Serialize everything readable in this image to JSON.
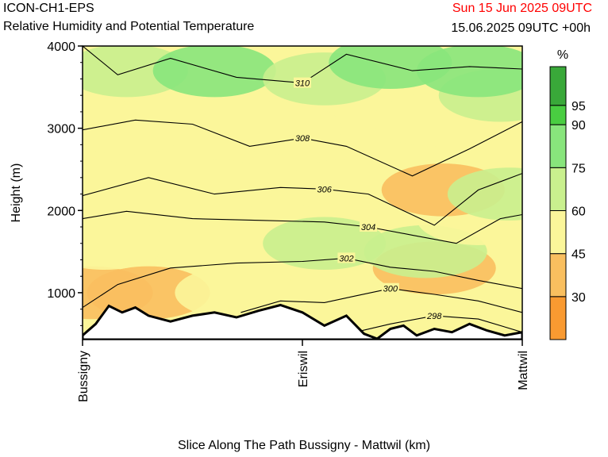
{
  "header": {
    "title": "ICON-CH1-EPS",
    "subtitle": "Relative Humidity and Potential Temperature",
    "valid_time": "Sun 15 Jun 2025 09UTC",
    "run_info": "15.06.2025 09UTC +00h"
  },
  "colors": {
    "terrain": "#ffffff",
    "contour": "#000000",
    "valid_time": "#ff0000"
  },
  "chart_data": {
    "type": "heatmap",
    "title": "ICON-CH1-EPS",
    "subtitle": "Relative Humidity and Potential Temperature",
    "xlabel": "Slice Along The Path Bussigny - Mattwil (km)",
    "ylabel": "Height (m)",
    "ylim": [
      430,
      4000
    ],
    "y_ticks": [
      1000,
      2000,
      3000,
      4000
    ],
    "x_ticks": [
      {
        "label": "Bussigny",
        "pos": 0
      },
      {
        "label": "Eriswil",
        "pos": 0.5
      },
      {
        "label": "Mattwil",
        "pos": 1
      }
    ],
    "colorbar": {
      "unit": "%",
      "bounds": [
        30,
        45,
        60,
        75,
        90,
        95
      ],
      "colors": [
        "#f99a31",
        "#f9bf5f",
        "#fbf69a",
        "#c9f08e",
        "#88e57c",
        "#49cd41",
        "#39a839"
      ]
    },
    "contours": [
      {
        "value": 298,
        "label": "298"
      },
      {
        "value": 300,
        "label": "300"
      },
      {
        "value": 302,
        "label": "302"
      },
      {
        "value": 304,
        "label": "304"
      },
      {
        "value": 306,
        "label": "306"
      },
      {
        "value": 308,
        "label": "308"
      },
      {
        "value": 310,
        "label": "310"
      }
    ],
    "series": [
      {
        "name": "Relative Humidity (%)",
        "values": [
          {
            "x": 0.02,
            "y": 1000,
            "v": 30
          },
          {
            "x": 0.15,
            "y": 1000,
            "v": 40
          },
          {
            "x": 0.35,
            "y": 1000,
            "v": 45
          },
          {
            "x": 0.8,
            "y": 1300,
            "v": 40
          },
          {
            "x": 0.05,
            "y": 1600,
            "v": 55
          },
          {
            "x": 0.3,
            "y": 1600,
            "v": 58
          },
          {
            "x": 0.55,
            "y": 1600,
            "v": 65
          },
          {
            "x": 0.78,
            "y": 1500,
            "v": 65
          },
          {
            "x": 0.9,
            "y": 1900,
            "v": 50
          },
          {
            "x": 0.01,
            "y": 2300,
            "v": 45
          },
          {
            "x": 0.3,
            "y": 2300,
            "v": 58
          },
          {
            "x": 0.6,
            "y": 2300,
            "v": 55
          },
          {
            "x": 0.82,
            "y": 2250,
            "v": 40
          },
          {
            "x": 0.97,
            "y": 2200,
            "v": 70
          },
          {
            "x": 0.1,
            "y": 3000,
            "v": 55
          },
          {
            "x": 0.45,
            "y": 3000,
            "v": 48
          },
          {
            "x": 0.8,
            "y": 3100,
            "v": 55
          },
          {
            "x": 0.95,
            "y": 3400,
            "v": 70
          },
          {
            "x": 0.1,
            "y": 3700,
            "v": 70
          },
          {
            "x": 0.3,
            "y": 3700,
            "v": 75
          },
          {
            "x": 0.55,
            "y": 3600,
            "v": 72
          },
          {
            "x": 0.7,
            "y": 3800,
            "v": 80
          },
          {
            "x": 0.9,
            "y": 3700,
            "v": 80
          }
        ]
      }
    ]
  }
}
